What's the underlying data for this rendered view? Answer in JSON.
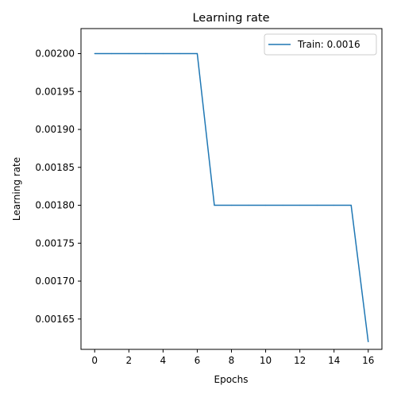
{
  "chart_data": {
    "type": "line",
    "title": "Learning rate",
    "xlabel": "Epochs",
    "ylabel": "Learning rate",
    "xlim": [
      -0.8,
      16.8
    ],
    "ylim": [
      0.00161,
      0.002033
    ],
    "x_ticks": [
      0,
      2,
      4,
      6,
      8,
      10,
      12,
      14,
      16
    ],
    "x_tick_labels": [
      "0",
      "2",
      "4",
      "6",
      "8",
      "10",
      "12",
      "14",
      "16"
    ],
    "y_ticks": [
      0.00165,
      0.0017,
      0.00175,
      0.0018,
      0.00185,
      0.0019,
      0.00195,
      0.002
    ],
    "y_tick_labels": [
      "0.00165",
      "0.00170",
      "0.00175",
      "0.00180",
      "0.00185",
      "0.00190",
      "0.00195",
      "0.00200"
    ],
    "grid": false,
    "legend_position": "top-right",
    "series": [
      {
        "name": "Train: 0.0016",
        "color": "#1f77b4",
        "x": [
          0,
          1,
          2,
          3,
          4,
          5,
          6,
          7,
          8,
          9,
          10,
          11,
          12,
          13,
          14,
          15,
          16
        ],
        "y": [
          0.002,
          0.002,
          0.002,
          0.002,
          0.002,
          0.002,
          0.002,
          0.0018,
          0.0018,
          0.0018,
          0.0018,
          0.0018,
          0.0018,
          0.0018,
          0.0018,
          0.0018,
          0.00162
        ]
      }
    ]
  }
}
